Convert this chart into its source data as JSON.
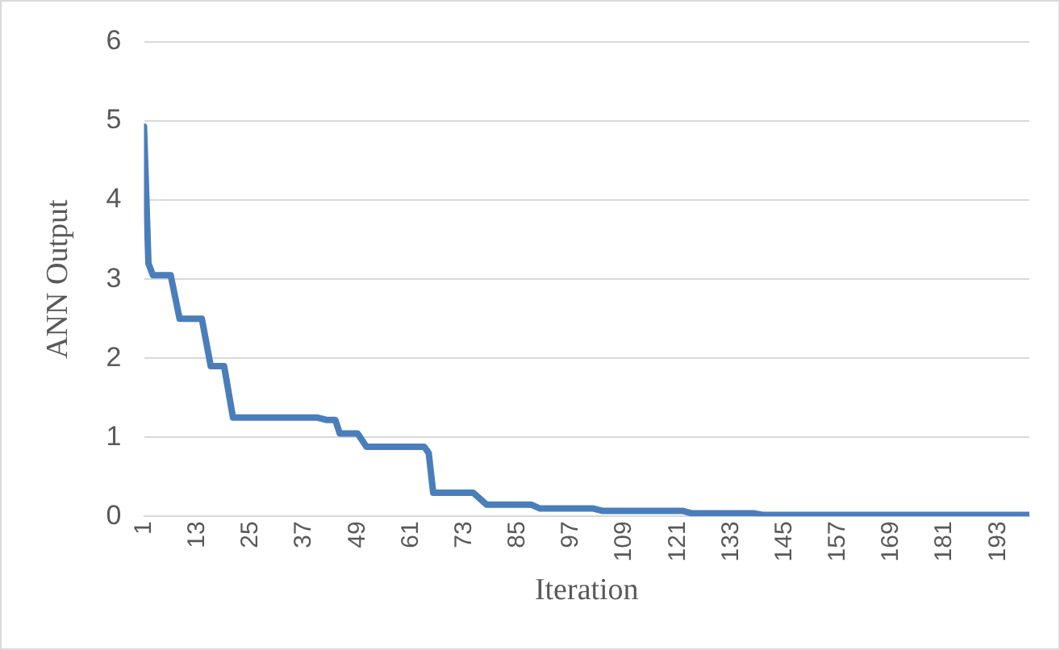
{
  "chart_data": {
    "type": "line",
    "xlabel": "Iteration",
    "ylabel": "ANN Output",
    "x": [
      1,
      2,
      3,
      7,
      9,
      14,
      16,
      19,
      21,
      40,
      42,
      44,
      45,
      49,
      51,
      64,
      65,
      66,
      75,
      78,
      88,
      90,
      102,
      104,
      122,
      124,
      138,
      140,
      200
    ],
    "series": [
      {
        "color": "#4a7ebb",
        "values": [
          4.93,
          3.2,
          3.05,
          3.05,
          2.5,
          2.5,
          1.9,
          1.9,
          1.25,
          1.25,
          1.22,
          1.22,
          1.05,
          1.05,
          0.88,
          0.88,
          0.8,
          0.3,
          0.3,
          0.15,
          0.15,
          0.1,
          0.1,
          0.07,
          0.07,
          0.04,
          0.04,
          0.02,
          0.02
        ]
      }
    ],
    "xlim": [
      1,
      200
    ],
    "xticks": [
      1,
      13,
      25,
      37,
      49,
      61,
      73,
      85,
      97,
      109,
      121,
      133,
      145,
      157,
      169,
      181,
      193
    ],
    "ylim": [
      0,
      6
    ],
    "yticks": [
      0,
      1,
      2,
      3,
      4,
      5,
      6
    ],
    "grid": "y",
    "legend": false,
    "marker": "none",
    "line_style": "solid"
  }
}
